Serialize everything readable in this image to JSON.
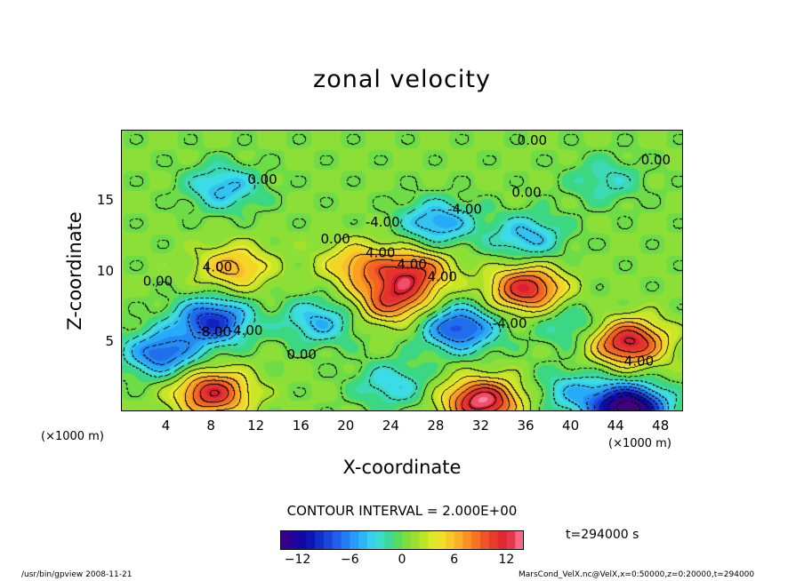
{
  "chart_data": {
    "type": "heatmap",
    "title": "zonal velocity",
    "xlabel": "X-coordinate",
    "ylabel": "Z-coordinate",
    "x_unit": "(×1000 m)",
    "x_ticks": [
      4,
      8,
      12,
      16,
      20,
      24,
      28,
      32,
      36,
      40,
      44,
      48
    ],
    "y_ticks": [
      5,
      10,
      15
    ],
    "xlim": [
      0,
      50
    ],
    "ylim": [
      0,
      20
    ],
    "contour_interval": "CONTOUR INTERVAL = 2.000E+00",
    "contour_labels": [
      {
        "text": "0.00",
        "x": 36.5,
        "y": 19.0
      },
      {
        "text": "0.00",
        "x": 47.5,
        "y": 17.6
      },
      {
        "text": "0.00",
        "x": 12.5,
        "y": 16.2
      },
      {
        "text": "0.00",
        "x": 36.0,
        "y": 15.3
      },
      {
        "text": "-4.00",
        "x": 30.5,
        "y": 14.1
      },
      {
        "text": "-4.00",
        "x": 23.2,
        "y": 13.2
      },
      {
        "text": "0.00",
        "x": 19.0,
        "y": 12.0
      },
      {
        "text": "4.00",
        "x": 23.0,
        "y": 11.0
      },
      {
        "text": "4.00",
        "x": 8.5,
        "y": 10.0
      },
      {
        "text": "4.00",
        "x": 25.8,
        "y": 10.2
      },
      {
        "text": "4.00",
        "x": 28.5,
        "y": 9.3
      },
      {
        "text": "0.00",
        "x": 3.2,
        "y": 9.0
      },
      {
        "text": "-4.00",
        "x": 34.5,
        "y": 6.0
      },
      {
        "text": "-8.00",
        "x": 8.2,
        "y": 5.4
      },
      {
        "text": "-4.00",
        "x": 11.0,
        "y": 5.5
      },
      {
        "text": "0.00",
        "x": 16.0,
        "y": 3.8
      },
      {
        "text": "4.00",
        "x": 46.0,
        "y": 3.3
      }
    ],
    "features": [
      {
        "x": 8.0,
        "y": 6.5,
        "value": -10
      },
      {
        "x": 3.5,
        "y": 4.2,
        "value": -8
      },
      {
        "x": 30.0,
        "y": 6.0,
        "value": -9
      },
      {
        "x": 17.5,
        "y": 6.5,
        "value": -5
      },
      {
        "x": 40.0,
        "y": 6.2,
        "value": -3
      },
      {
        "x": 24.0,
        "y": 2.0,
        "value": -4
      },
      {
        "x": 40.0,
        "y": 1.5,
        "value": -4
      },
      {
        "x": 28.0,
        "y": 13.5,
        "value": -6
      },
      {
        "x": 36.0,
        "y": 12.5,
        "value": -5
      },
      {
        "x": 9.0,
        "y": 16.0,
        "value": -5
      },
      {
        "x": 43.0,
        "y": 16.5,
        "value": -3
      },
      {
        "x": 8.0,
        "y": 1.4,
        "value": 11
      },
      {
        "x": 32.0,
        "y": 0.8,
        "value": 13
      },
      {
        "x": 45.0,
        "y": 5.0,
        "value": 12
      },
      {
        "x": 36.0,
        "y": 8.8,
        "value": 11
      },
      {
        "x": 24.0,
        "y": 8.0,
        "value": 9
      },
      {
        "x": 26.0,
        "y": 10.0,
        "value": 9
      },
      {
        "x": 10.0,
        "y": 10.3,
        "value": 6
      },
      {
        "x": 21.0,
        "y": 10.5,
        "value": 6
      },
      {
        "x": 45.0,
        "y": 0.3,
        "value": -16
      }
    ],
    "colorbar": {
      "range": [
        -14,
        14
      ],
      "ticks": [
        -12,
        -6,
        0,
        6,
        12
      ]
    }
  },
  "time_label": "t=294000 s",
  "footer": {
    "left": "/usr/bin/gpview   2008-11-21",
    "right": "MarsCond_VelX.nc@VelX,x=0:50000,z=0:20000,t=294000"
  },
  "colors": {
    "max": "#ff80a0",
    "min": "#40007f",
    "mid": "#70dc40"
  }
}
